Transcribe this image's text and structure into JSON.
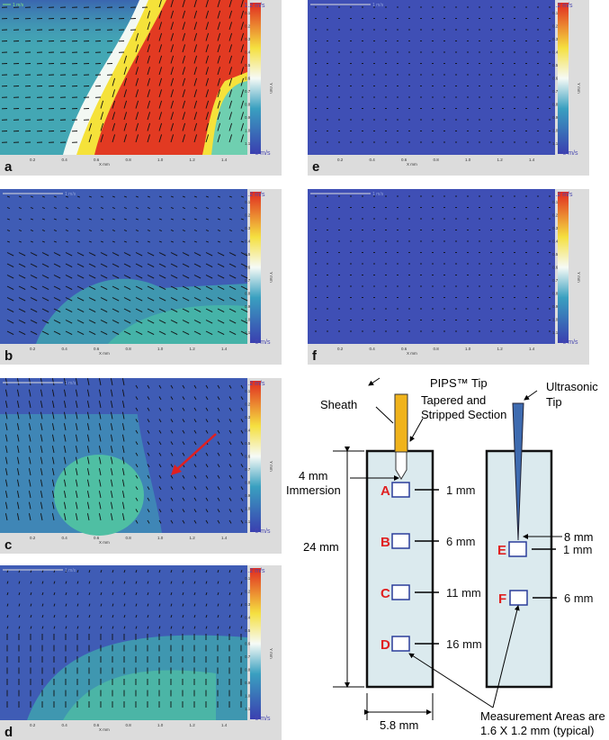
{
  "panels": [
    {
      "id": "a",
      "label": "a",
      "scale_arrow": "1 m/s"
    },
    {
      "id": "b",
      "label": "b",
      "scale_arrow": "1 m/s"
    },
    {
      "id": "c",
      "label": "c",
      "scale_arrow": "1 m/s"
    },
    {
      "id": "d",
      "label": "d",
      "scale_arrow": "1 m/s"
    },
    {
      "id": "e",
      "label": "e",
      "scale_arrow": "1 m/s"
    },
    {
      "id": "f",
      "label": "f",
      "scale_arrow": "1 m/s"
    }
  ],
  "axes": {
    "x_label": "X mm",
    "y_label": "Y mm",
    "x_ticks": [
      "0.2",
      "0.4",
      "0.6",
      "0.8",
      "1.0",
      "1.2",
      "1.4"
    ],
    "y_ticks": [
      "0.1",
      "0.2",
      "0.3",
      "0.4",
      "0.5",
      "0.6",
      "0.7",
      "0.8",
      "0.9",
      "1.0",
      "1.1"
    ],
    "colorbar_max": "1.2 m/s",
    "colorbar_min": "0 m/s"
  },
  "diagram": {
    "pips_tip": "PIPS™ Tip",
    "sheath": "Sheath",
    "tapered_1": "Tapered and",
    "tapered_2": "Stripped Section",
    "ultrasonic_1": "Ultrasonic",
    "ultrasonic_2": "Tip",
    "immersion_1": "4 mm",
    "immersion_2": "Immersion",
    "height": "24 mm",
    "width": "5.8 mm",
    "areas_left": [
      {
        "letter": "A",
        "depth": "1 mm"
      },
      {
        "letter": "B",
        "depth": "6 mm"
      },
      {
        "letter": "C",
        "depth": "11 mm"
      },
      {
        "letter": "D",
        "depth": "16 mm"
      }
    ],
    "areas_right": [
      {
        "letter": "E",
        "depth": "1 mm"
      },
      {
        "letter": "F",
        "depth": "6 mm"
      }
    ],
    "tip_depth": "8 mm",
    "note_1": "Measurement Areas are",
    "note_2": "1.6 X 1.2 mm (typical)",
    "colors": {
      "sheath": "#f0b31c",
      "ultrasonic": "#3e6bb0",
      "fluid": "#dbeaee",
      "box": "#2b3d9a",
      "letter": "#e02020"
    }
  }
}
